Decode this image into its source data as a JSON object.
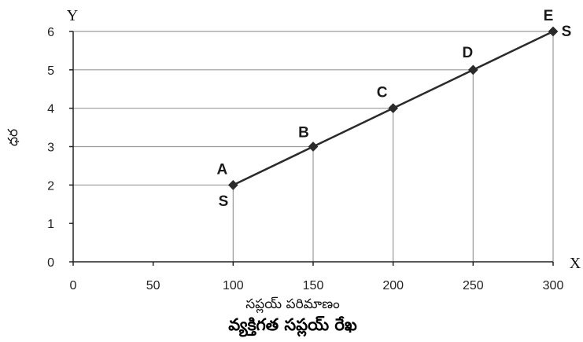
{
  "chart_data": {
    "type": "line",
    "title": "వ్యక్తిగత సప్లయ్ రేఖ",
    "xlabel": "సప్లయ్ పరిమాణం",
    "ylabel": "ధర",
    "x_axis_letter": "X",
    "y_axis_letter": "Y",
    "xlim": [
      0,
      300
    ],
    "ylim": [
      0,
      6
    ],
    "x_ticks": [
      "0",
      "50",
      "100",
      "150",
      "200",
      "250",
      "300"
    ],
    "y_ticks": [
      "0",
      "1",
      "2",
      "3",
      "4",
      "5",
      "6"
    ],
    "series": [
      {
        "points": [
          {
            "label": "A",
            "x": 100,
            "y": 2
          },
          {
            "label": "B",
            "x": 150,
            "y": 3
          },
          {
            "label": "C",
            "x": 200,
            "y": 4
          },
          {
            "label": "D",
            "x": 250,
            "y": 5
          },
          {
            "label": "E",
            "x": 300,
            "y": 6
          }
        ]
      }
    ],
    "curve_end_labels": [
      "S",
      "S"
    ],
    "grid": false,
    "line_color": "#2a2a2a",
    "guide_color": "#9a9a9a"
  }
}
